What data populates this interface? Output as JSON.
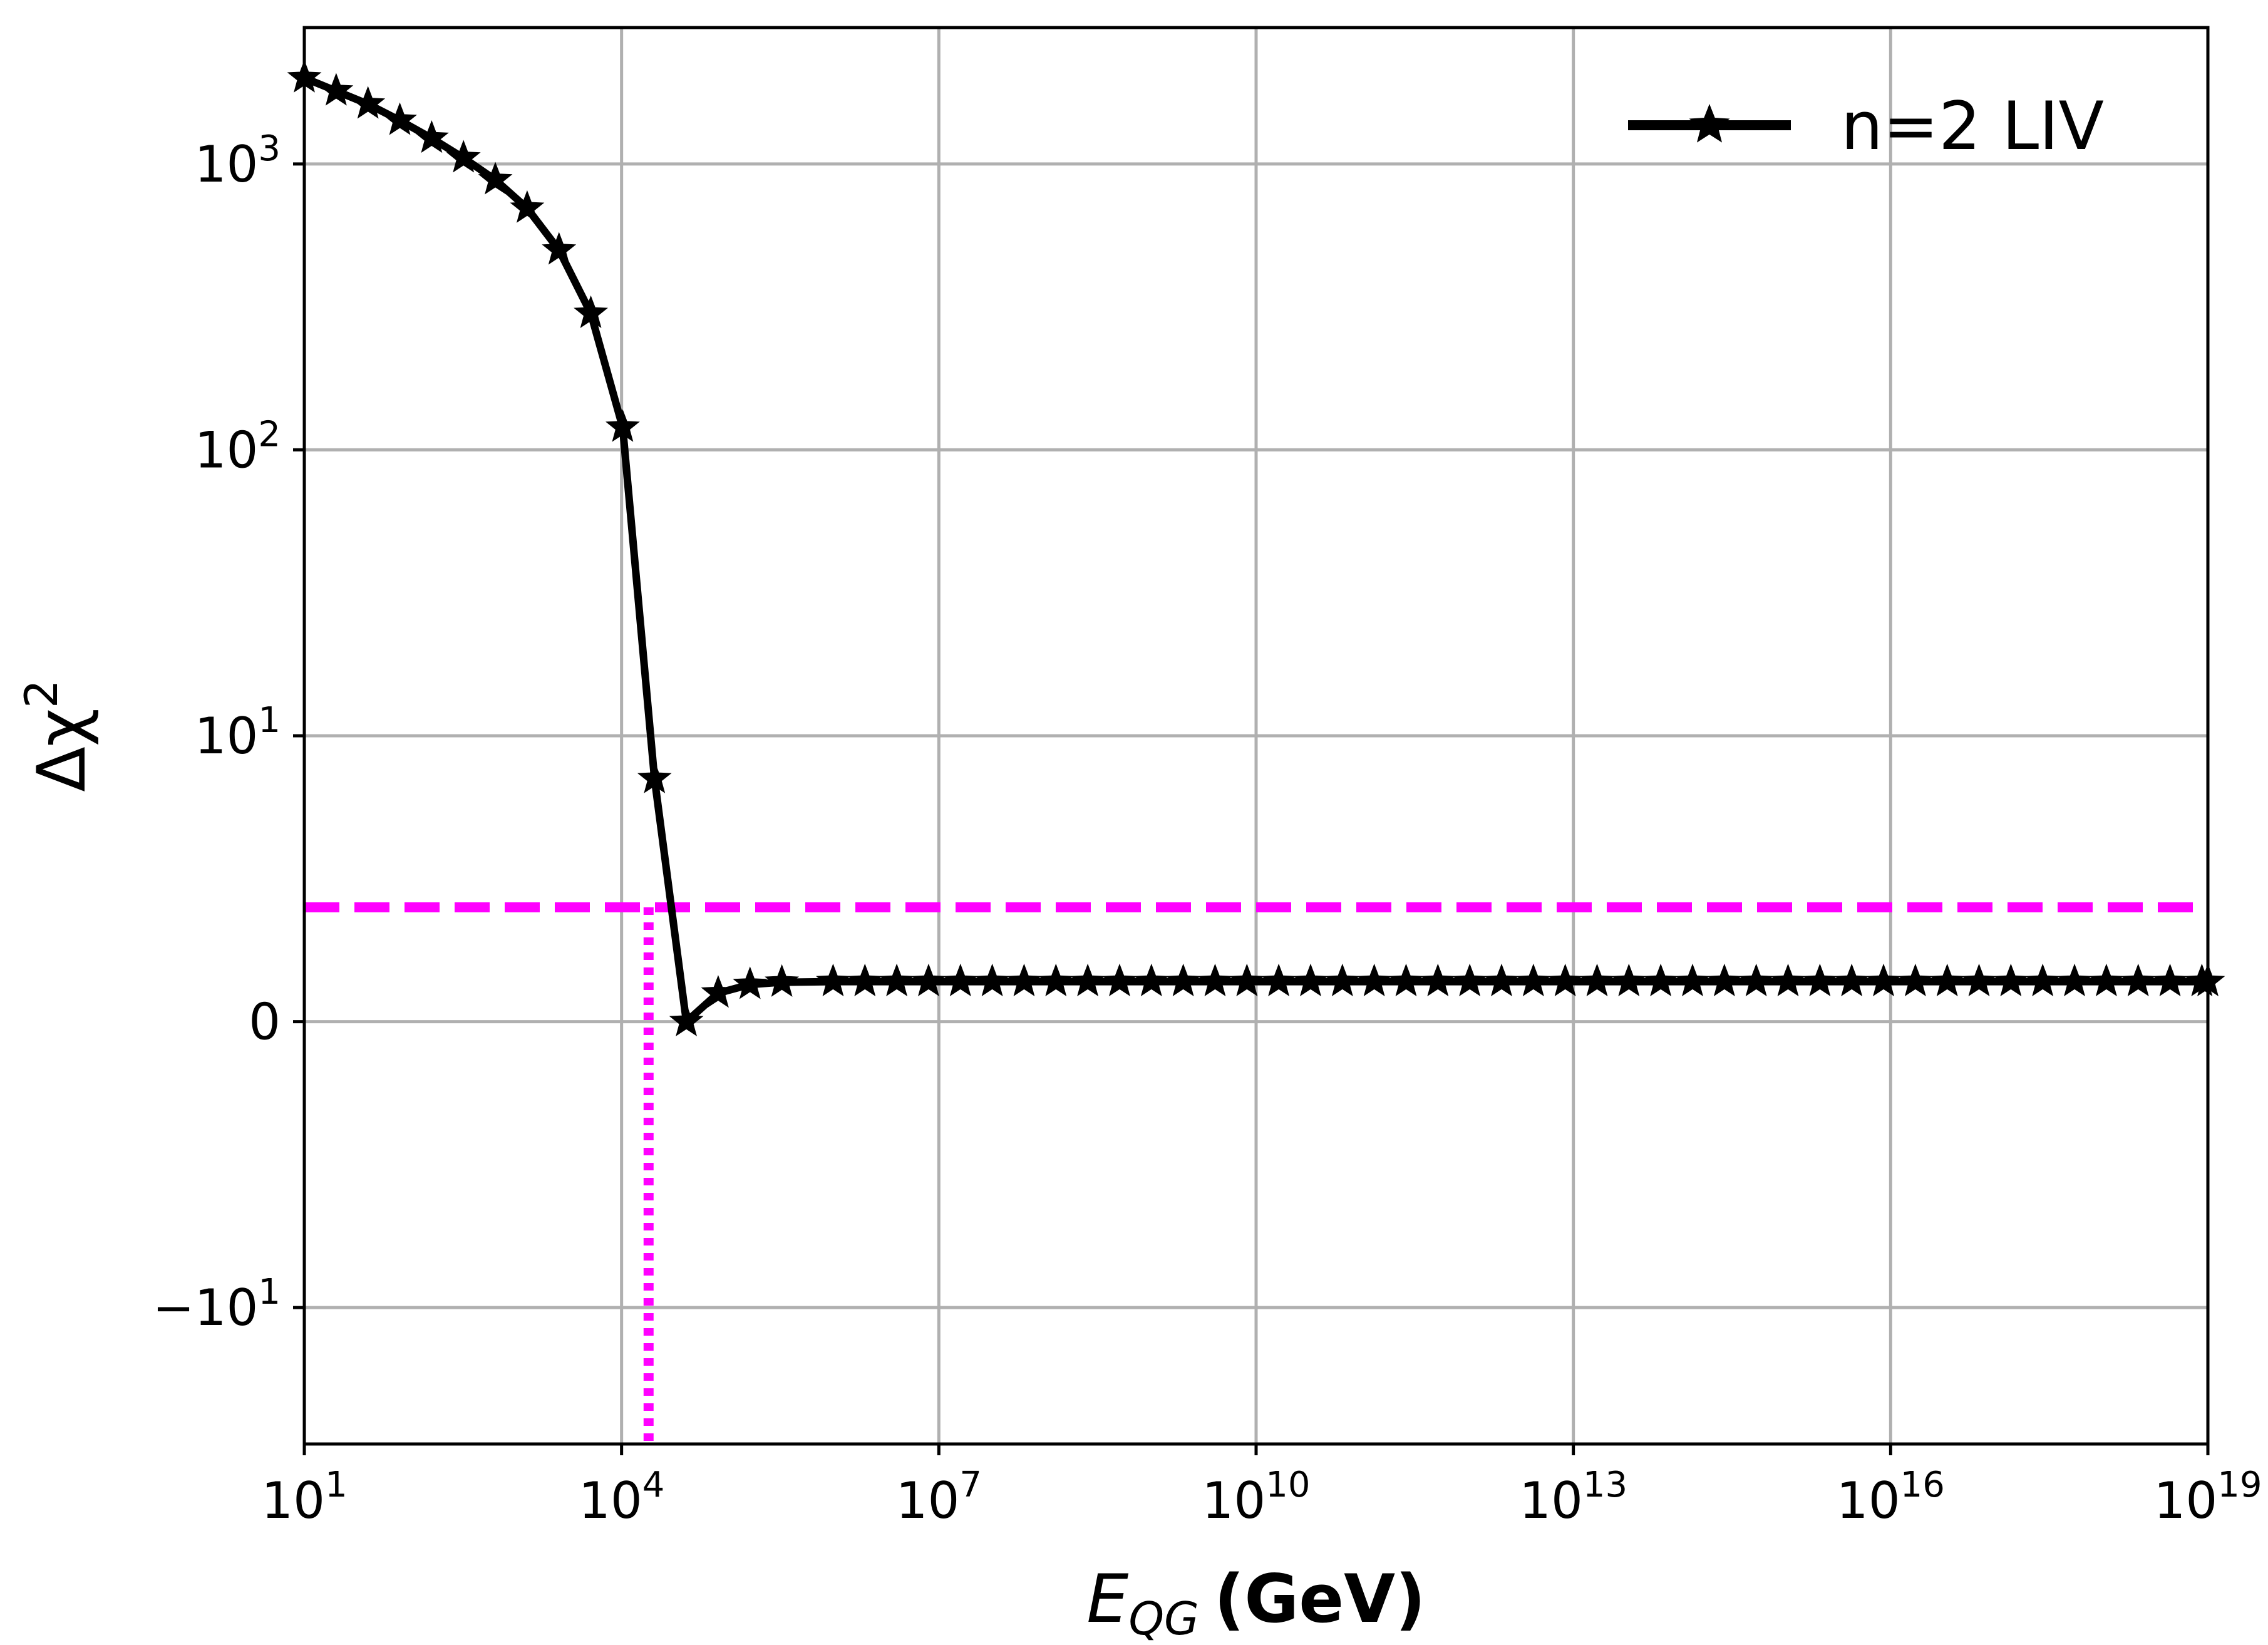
{
  "chart_data": {
    "type": "line",
    "x_scale": "log10",
    "y_scale": "symlog",
    "y_linthresh": 10,
    "xlabel": {
      "main": "E",
      "sub": "QG",
      "unit": "(GeV)"
    },
    "ylabel": {
      "main": "Δχ",
      "sup": "2"
    },
    "xlim": [
      10,
      1e+19
    ],
    "ylim": [
      -30,
      3000
    ],
    "grid": true,
    "x_ticks": [
      {
        "value": 10,
        "base": "10",
        "exp": "1"
      },
      {
        "value": 10000.0,
        "base": "10",
        "exp": "4"
      },
      {
        "value": 10000000.0,
        "base": "10",
        "exp": "7"
      },
      {
        "value": 10000000000.0,
        "base": "10",
        "exp": "10"
      },
      {
        "value": 10000000000000.0,
        "base": "10",
        "exp": "13"
      },
      {
        "value": 1e+16,
        "base": "10",
        "exp": "16"
      },
      {
        "value": 1e+19,
        "base": "10",
        "exp": "19"
      }
    ],
    "y_ticks": [
      {
        "value": 1000,
        "base": "10",
        "exp": "3"
      },
      {
        "value": 100,
        "base": "10",
        "exp": "2"
      },
      {
        "value": 10,
        "base": "10",
        "exp": "1"
      },
      {
        "value": 0,
        "base": "0",
        "exp": ""
      },
      {
        "value": -10,
        "base": "−10",
        "exp": "1"
      }
    ],
    "legend": {
      "position": "top-right",
      "label": "n=2 LIV"
    },
    "series": [
      {
        "name": "n=2 LIV",
        "color": "#000000",
        "marker": "star",
        "points": [
          [
            10,
            2000
          ],
          [
            20,
            1800
          ],
          [
            40,
            1620
          ],
          [
            80,
            1420
          ],
          [
            160,
            1230
          ],
          [
            320,
            1050
          ],
          [
            640,
            880
          ],
          [
            1280,
            700
          ],
          [
            2560,
            500
          ],
          [
            5120,
            300
          ],
          [
            10240,
            120
          ],
          [
            20480,
            8.5
          ],
          [
            40960,
            0
          ],
          [
            81920,
            1.0
          ],
          [
            163840,
            1.3
          ],
          [
            327680,
            1.38
          ],
          [
            1000000.0,
            1.4
          ],
          [
            1e+19,
            1.4
          ]
        ]
      }
    ],
    "reference_lines": [
      {
        "orientation": "horizontal",
        "value": 4,
        "style": "dashed",
        "color": "#ff00ff"
      },
      {
        "orientation": "vertical",
        "value": 18000,
        "style": "dotted",
        "color": "#ff00ff",
        "from_y": -30,
        "to_y": 4
      }
    ]
  }
}
